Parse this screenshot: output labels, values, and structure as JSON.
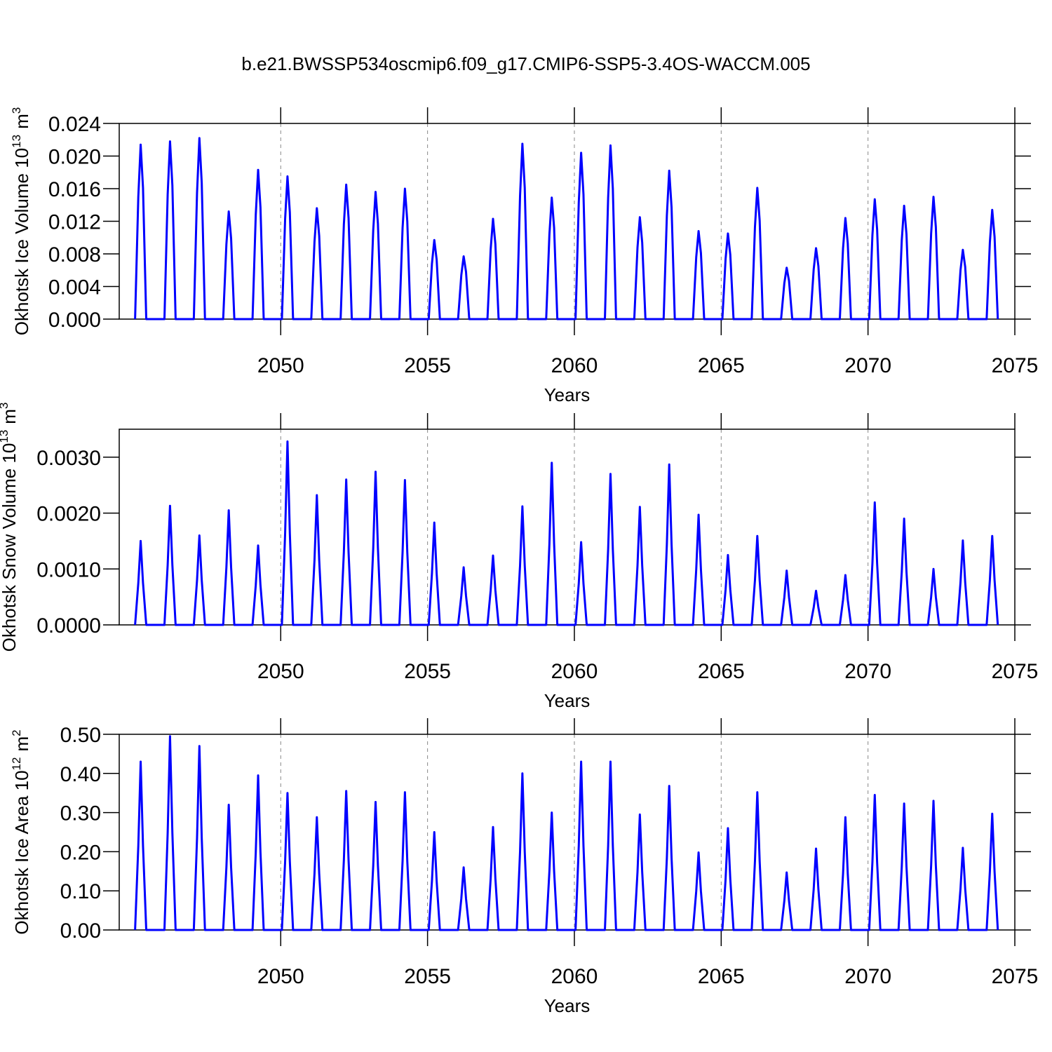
{
  "title": "b.e21.BWSSP534oscmip6.f09_g17.CMIP6-SSP5-3.4OS-WACCM.005",
  "chart_data": [
    {
      "type": "line",
      "y_label": "Okhotsk Ice Volume 10",
      "y_label_exp": "13",
      "y_label_unit": "m",
      "y_label_unit_exp": "3",
      "x_label": "Years",
      "color": "#0000ff",
      "grid": true,
      "xlim": [
        2044.5,
        2075
      ],
      "xticks": [
        2050,
        2055,
        2060,
        2065,
        2070,
        2075
      ],
      "ylim": [
        0,
        0.024
      ],
      "yticks": [
        {
          "value": 0,
          "label": "0.000"
        },
        {
          "value": 0.004,
          "label": "0.004"
        },
        {
          "value": 0.008,
          "label": "0.008"
        },
        {
          "value": 0.012,
          "label": "0.012"
        },
        {
          "value": 0.016,
          "label": "0.016"
        },
        {
          "value": 0.02,
          "label": "0.020"
        },
        {
          "value": 0.024,
          "label": "0.024"
        }
      ],
      "x": [
        2045.04,
        2045.15,
        2045.23,
        2045.31,
        2045.42,
        2046.04,
        2046.15,
        2046.23,
        2046.31,
        2046.42,
        2047.04,
        2047.15,
        2047.23,
        2047.31,
        2047.42,
        2048.04,
        2048.15,
        2048.23,
        2048.31,
        2048.42,
        2049.04,
        2049.15,
        2049.23,
        2049.31,
        2049.42,
        2050.04,
        2050.15,
        2050.23,
        2050.31,
        2050.42,
        2051.04,
        2051.15,
        2051.23,
        2051.31,
        2051.42,
        2052.04,
        2052.15,
        2052.23,
        2052.31,
        2052.42,
        2053.04,
        2053.15,
        2053.23,
        2053.31,
        2053.42,
        2054.04,
        2054.15,
        2054.23,
        2054.31,
        2054.42,
        2055.04,
        2055.15,
        2055.23,
        2055.31,
        2055.42,
        2056.04,
        2056.15,
        2056.23,
        2056.31,
        2056.42,
        2057.04,
        2057.15,
        2057.23,
        2057.31,
        2057.42,
        2058.04,
        2058.15,
        2058.23,
        2058.31,
        2058.42,
        2059.04,
        2059.15,
        2059.23,
        2059.31,
        2059.42,
        2060.04,
        2060.15,
        2060.23,
        2060.31,
        2060.42,
        2061.04,
        2061.15,
        2061.23,
        2061.31,
        2061.42,
        2062.04,
        2062.15,
        2062.23,
        2062.31,
        2062.42,
        2063.04,
        2063.15,
        2063.23,
        2063.31,
        2063.42,
        2064.04,
        2064.15,
        2064.23,
        2064.31,
        2064.42,
        2065.04,
        2065.15,
        2065.23,
        2065.31,
        2065.42,
        2066.04,
        2066.15,
        2066.23,
        2066.31,
        2066.42,
        2067.04,
        2067.15,
        2067.23,
        2067.31,
        2067.42,
        2068.04,
        2068.15,
        2068.23,
        2068.31,
        2068.42,
        2069.04,
        2069.15,
        2069.23,
        2069.31,
        2069.42,
        2070.04,
        2070.15,
        2070.23,
        2070.31,
        2070.42,
        2071.04,
        2071.15,
        2071.23,
        2071.31,
        2071.42,
        2072.04,
        2072.15,
        2072.23,
        2072.31,
        2072.42,
        2073.04,
        2073.15,
        2073.23,
        2073.31,
        2073.42,
        2074.04,
        2074.15,
        2074.23,
        2074.31,
        2074.42
      ],
      "values": [
        0,
        0.015,
        0.0214,
        0.0161,
        0,
        0,
        0.0153,
        0.0218,
        0.0164,
        0,
        0,
        0.0155,
        0.0222,
        0.0167,
        0,
        0,
        0.0092,
        0.0132,
        0.0099,
        0,
        0,
        0.0128,
        0.0183,
        0.0137,
        0,
        0,
        0.0123,
        0.0175,
        0.0131,
        0,
        0,
        0.0095,
        0.0136,
        0.0102,
        0,
        0,
        0.0116,
        0.0165,
        0.0124,
        0,
        0,
        0.0109,
        0.0156,
        0.0117,
        0,
        0,
        0.0112,
        0.016,
        0.012,
        0,
        0,
        0.0068,
        0.0097,
        0.0073,
        0,
        0,
        0.0054,
        0.0077,
        0.0058,
        0,
        0,
        0.0086,
        0.0123,
        0.0092,
        0,
        0,
        0.0151,
        0.0215,
        0.0161,
        0,
        0,
        0.0104,
        0.0149,
        0.0112,
        0,
        0,
        0.0143,
        0.0204,
        0.0153,
        0,
        0,
        0.0149,
        0.0213,
        0.016,
        0,
        0,
        0.0088,
        0.0125,
        0.0094,
        0,
        0,
        0.0127,
        0.0182,
        0.0137,
        0,
        0,
        0.0076,
        0.0108,
        0.0081,
        0,
        0,
        0.0074,
        0.0105,
        0.0079,
        0,
        0,
        0.0113,
        0.0161,
        0.0121,
        0,
        0,
        0.0044,
        0.0063,
        0.0047,
        0,
        0,
        0.0061,
        0.0087,
        0.0065,
        0,
        0,
        0.0087,
        0.0124,
        0.0093,
        0,
        0,
        0.0103,
        0.0147,
        0.011,
        0,
        0,
        0.0097,
        0.0139,
        0.0104,
        0,
        0,
        0.0105,
        0.015,
        0.0113,
        0,
        0,
        0.006,
        0.0085,
        0.0064,
        0,
        0,
        0.0094,
        0.0134,
        0.0101,
        0
      ]
    },
    {
      "type": "line",
      "y_label": "Okhotsk Snow Volume 10",
      "y_label_exp": "13",
      "y_label_unit": "m",
      "y_label_unit_exp": "3",
      "x_label": "Years",
      "color": "#0000ff",
      "grid": true,
      "xlim": [
        2044.5,
        2075
      ],
      "xticks": [
        2050,
        2055,
        2060,
        2065,
        2070,
        2075
      ],
      "ylim": [
        0,
        0.0035
      ],
      "yticks": [
        {
          "value": 0,
          "label": "0.0000"
        },
        {
          "value": 0.001,
          "label": "0.0010"
        },
        {
          "value": 0.002,
          "label": "0.0020"
        },
        {
          "value": 0.003,
          "label": "0.0030"
        }
      ],
      "x": [
        2045.04,
        2045.15,
        2045.23,
        2045.31,
        2045.42,
        2046.04,
        2046.15,
        2046.23,
        2046.31,
        2046.42,
        2047.04,
        2047.15,
        2047.23,
        2047.31,
        2047.42,
        2048.04,
        2048.15,
        2048.23,
        2048.31,
        2048.42,
        2049.04,
        2049.15,
        2049.23,
        2049.31,
        2049.42,
        2050.04,
        2050.15,
        2050.23,
        2050.31,
        2050.42,
        2051.04,
        2051.15,
        2051.23,
        2051.31,
        2051.42,
        2052.04,
        2052.15,
        2052.23,
        2052.31,
        2052.42,
        2053.04,
        2053.15,
        2053.23,
        2053.31,
        2053.42,
        2054.04,
        2054.15,
        2054.23,
        2054.31,
        2054.42,
        2055.04,
        2055.15,
        2055.23,
        2055.31,
        2055.42,
        2056.04,
        2056.15,
        2056.23,
        2056.31,
        2056.42,
        2057.04,
        2057.15,
        2057.23,
        2057.31,
        2057.42,
        2058.04,
        2058.15,
        2058.23,
        2058.31,
        2058.42,
        2059.04,
        2059.15,
        2059.23,
        2059.31,
        2059.42,
        2060.04,
        2060.15,
        2060.23,
        2060.31,
        2060.42,
        2061.04,
        2061.15,
        2061.23,
        2061.31,
        2061.42,
        2062.04,
        2062.15,
        2062.23,
        2062.31,
        2062.42,
        2063.04,
        2063.15,
        2063.23,
        2063.31,
        2063.42,
        2064.04,
        2064.15,
        2064.23,
        2064.31,
        2064.42,
        2065.04,
        2065.15,
        2065.23,
        2065.31,
        2065.42,
        2066.04,
        2066.15,
        2066.23,
        2066.31,
        2066.42,
        2067.04,
        2067.15,
        2067.23,
        2067.31,
        2067.42,
        2068.04,
        2068.15,
        2068.23,
        2068.31,
        2068.42,
        2069.04,
        2069.15,
        2069.23,
        2069.31,
        2069.42,
        2070.04,
        2070.15,
        2070.23,
        2070.31,
        2070.42,
        2071.04,
        2071.15,
        2071.23,
        2071.31,
        2071.42,
        2072.04,
        2072.15,
        2072.23,
        2072.31,
        2072.42,
        2073.04,
        2073.15,
        2073.23,
        2073.31,
        2073.42,
        2074.04,
        2074.15,
        2074.23,
        2074.31,
        2074.42
      ],
      "values": [
        0,
        0.00075,
        0.0015,
        0.00075,
        0,
        0,
        0.00107,
        0.00213,
        0.00107,
        0,
        0,
        0.0008,
        0.0016,
        0.0008,
        0,
        0,
        0.00103,
        0.00205,
        0.00103,
        0,
        0,
        0.00071,
        0.00142,
        0.00071,
        0,
        0,
        0.00164,
        0.00328,
        0.00164,
        0,
        0,
        0.00116,
        0.00232,
        0.00116,
        0,
        0,
        0.0013,
        0.0026,
        0.0013,
        0,
        0,
        0.00137,
        0.00274,
        0.00137,
        0,
        0,
        0.0013,
        0.00259,
        0.0013,
        0,
        0,
        0.00092,
        0.00183,
        0.00092,
        0,
        0,
        0.00052,
        0.00103,
        0.00052,
        0,
        0,
        0.00062,
        0.00124,
        0.00062,
        0,
        0,
        0.00106,
        0.00212,
        0.00106,
        0,
        0,
        0.00145,
        0.0029,
        0.00145,
        0,
        0,
        0.00074,
        0.00148,
        0.00074,
        0,
        0,
        0.00135,
        0.0027,
        0.00135,
        0,
        0,
        0.00106,
        0.00211,
        0.00106,
        0,
        0,
        0.00144,
        0.00287,
        0.00144,
        0,
        0,
        0.00099,
        0.00197,
        0.00099,
        0,
        0,
        0.00063,
        0.00125,
        0.00063,
        0,
        0,
        0.0008,
        0.00159,
        0.0008,
        0,
        0,
        0.00049,
        0.00097,
        0.00049,
        0,
        0,
        0.00031,
        0.00061,
        0.00031,
        0,
        0,
        0.00045,
        0.00089,
        0.00045,
        0,
        0,
        0.0011,
        0.00219,
        0.0011,
        0,
        0,
        0.00095,
        0.0019,
        0.00095,
        0,
        0,
        0.0005,
        0.001,
        0.0005,
        0,
        0,
        0.00076,
        0.00151,
        0.00076,
        0,
        0,
        0.0008,
        0.00159,
        0.0008,
        0
      ]
    },
    {
      "type": "line",
      "y_label": "Okhotsk Ice Area 10",
      "y_label_exp": "12",
      "y_label_unit": "m",
      "y_label_unit_exp": "2",
      "x_label": "Years",
      "color": "#0000ff",
      "grid": true,
      "xlim": [
        2044.5,
        2075
      ],
      "xticks": [
        2050,
        2055,
        2060,
        2065,
        2070,
        2075
      ],
      "ylim": [
        0,
        0.5
      ],
      "yticks": [
        {
          "value": 0,
          "label": "0.00"
        },
        {
          "value": 0.1,
          "label": "0.10"
        },
        {
          "value": 0.2,
          "label": "0.20"
        },
        {
          "value": 0.3,
          "label": "0.30"
        },
        {
          "value": 0.4,
          "label": "0.40"
        },
        {
          "value": 0.5,
          "label": "0.50"
        }
      ],
      "x": [
        2045.04,
        2045.15,
        2045.23,
        2045.31,
        2045.42,
        2046.04,
        2046.15,
        2046.23,
        2046.31,
        2046.42,
        2047.04,
        2047.15,
        2047.23,
        2047.31,
        2047.42,
        2048.04,
        2048.15,
        2048.23,
        2048.31,
        2048.42,
        2049.04,
        2049.15,
        2049.23,
        2049.31,
        2049.42,
        2050.04,
        2050.15,
        2050.23,
        2050.31,
        2050.42,
        2051.04,
        2051.15,
        2051.23,
        2051.31,
        2051.42,
        2052.04,
        2052.15,
        2052.23,
        2052.31,
        2052.42,
        2053.04,
        2053.15,
        2053.23,
        2053.31,
        2053.42,
        2054.04,
        2054.15,
        2054.23,
        2054.31,
        2054.42,
        2055.04,
        2055.15,
        2055.23,
        2055.31,
        2055.42,
        2056.04,
        2056.15,
        2056.23,
        2056.31,
        2056.42,
        2057.04,
        2057.15,
        2057.23,
        2057.31,
        2057.42,
        2058.04,
        2058.15,
        2058.23,
        2058.31,
        2058.42,
        2059.04,
        2059.15,
        2059.23,
        2059.31,
        2059.42,
        2060.04,
        2060.15,
        2060.23,
        2060.31,
        2060.42,
        2061.04,
        2061.15,
        2061.23,
        2061.31,
        2061.42,
        2062.04,
        2062.15,
        2062.23,
        2062.31,
        2062.42,
        2063.04,
        2063.15,
        2063.23,
        2063.31,
        2063.42,
        2064.04,
        2064.15,
        2064.23,
        2064.31,
        2064.42,
        2065.04,
        2065.15,
        2065.23,
        2065.31,
        2065.42,
        2066.04,
        2066.15,
        2066.23,
        2066.31,
        2066.42,
        2067.04,
        2067.15,
        2067.23,
        2067.31,
        2067.42,
        2068.04,
        2068.15,
        2068.23,
        2068.31,
        2068.42,
        2069.04,
        2069.15,
        2069.23,
        2069.31,
        2069.42,
        2070.04,
        2070.15,
        2070.23,
        2070.31,
        2070.42,
        2071.04,
        2071.15,
        2071.23,
        2071.31,
        2071.42,
        2072.04,
        2072.15,
        2072.23,
        2072.31,
        2072.42,
        2073.04,
        2073.15,
        2073.23,
        2073.31,
        2073.42,
        2074.04,
        2074.15,
        2074.23,
        2074.31,
        2074.42
      ],
      "values": [
        0,
        0.215,
        0.43,
        0.215,
        0,
        0,
        0.248,
        0.495,
        0.248,
        0,
        0,
        0.235,
        0.47,
        0.235,
        0,
        0,
        0.16,
        0.32,
        0.16,
        0,
        0,
        0.198,
        0.395,
        0.198,
        0,
        0,
        0.175,
        0.35,
        0.175,
        0,
        0,
        0.144,
        0.288,
        0.144,
        0,
        0,
        0.178,
        0.355,
        0.178,
        0,
        0,
        0.164,
        0.327,
        0.164,
        0,
        0,
        0.176,
        0.352,
        0.176,
        0,
        0,
        0.125,
        0.25,
        0.125,
        0,
        0,
        0.08,
        0.16,
        0.08,
        0,
        0,
        0.132,
        0.263,
        0.132,
        0,
        0,
        0.2,
        0.4,
        0.2,
        0,
        0,
        0.15,
        0.3,
        0.15,
        0,
        0,
        0.215,
        0.43,
        0.215,
        0,
        0,
        0.215,
        0.43,
        0.215,
        0,
        0,
        0.148,
        0.295,
        0.148,
        0,
        0,
        0.184,
        0.368,
        0.184,
        0,
        0,
        0.099,
        0.198,
        0.099,
        0,
        0,
        0.13,
        0.26,
        0.13,
        0,
        0,
        0.176,
        0.352,
        0.176,
        0,
        0,
        0.074,
        0.147,
        0.074,
        0,
        0,
        0.104,
        0.208,
        0.104,
        0,
        0,
        0.144,
        0.288,
        0.144,
        0,
        0,
        0.173,
        0.345,
        0.173,
        0,
        0,
        0.162,
        0.323,
        0.162,
        0,
        0,
        0.165,
        0.33,
        0.165,
        0,
        0,
        0.105,
        0.21,
        0.105,
        0,
        0,
        0.149,
        0.297,
        0.149,
        0
      ]
    }
  ]
}
